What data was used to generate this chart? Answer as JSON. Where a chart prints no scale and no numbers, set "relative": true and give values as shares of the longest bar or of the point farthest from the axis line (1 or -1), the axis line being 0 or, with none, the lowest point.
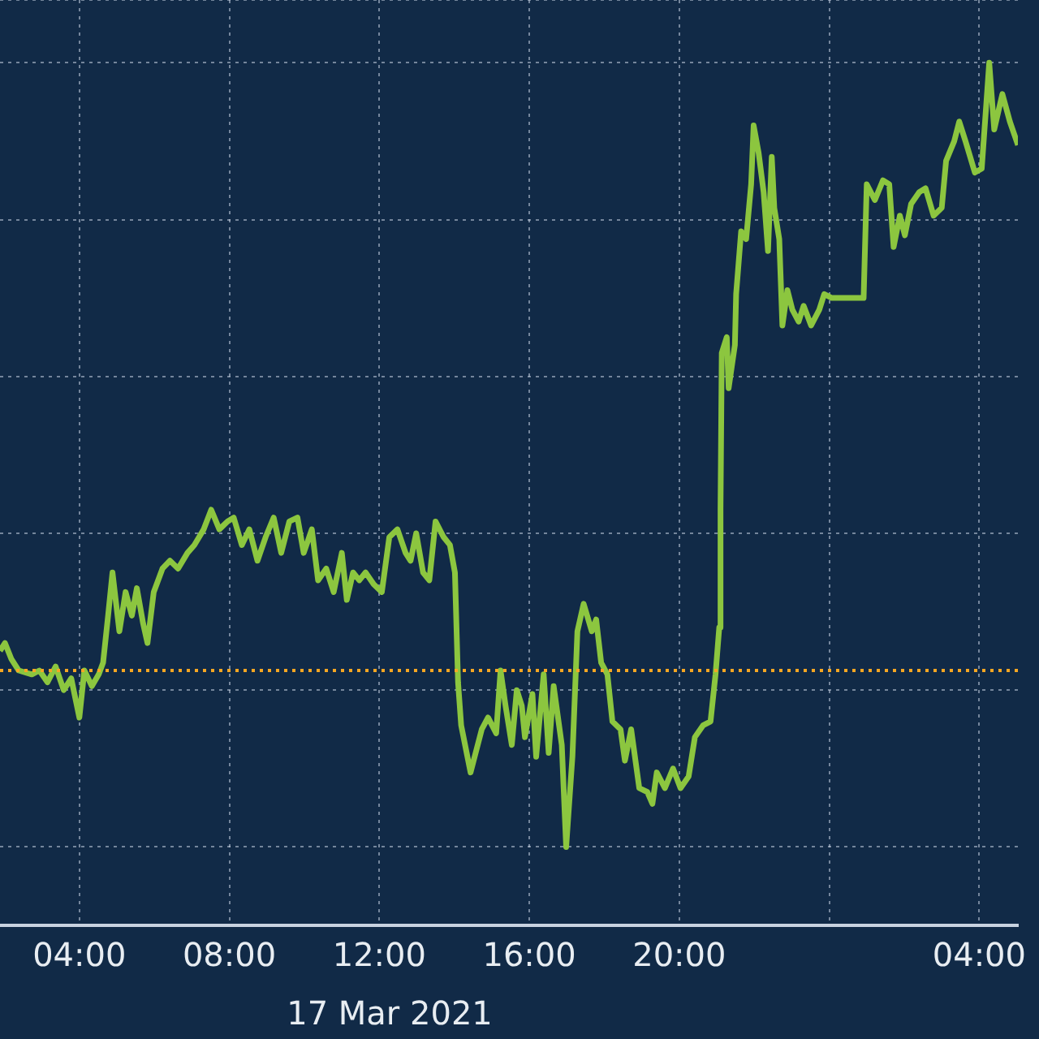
{
  "chart_data": {
    "type": "line",
    "relative": true,
    "grid": true,
    "legend": false,
    "marker": "none",
    "line_style": "solid",
    "xlim": [
      "2021-03-17T01:53",
      "2021-03-18T05:02"
    ],
    "xticks": [
      {
        "value": "2021-03-17T04:00",
        "label": "04:00"
      },
      {
        "value": "2021-03-17T08:00",
        "label": "08:00"
      },
      {
        "value": "2021-03-17T12:00",
        "label": "12:00"
      },
      {
        "value": "2021-03-17T16:00",
        "label": "16:00"
      },
      {
        "value": "2021-03-17T20:00",
        "label": "20:00"
      },
      {
        "value": "2021-03-18T00:00",
        "label": null
      },
      {
        "value": "2021-03-18T04:00",
        "label": "04:00"
      }
    ],
    "annotations": [
      "17 Mar 2021"
    ],
    "ref_lines": [
      {
        "axis": "y",
        "value": 0.225,
        "label": null,
        "color": "#f5a623",
        "line_style": "dotted"
      }
    ],
    "series": [
      {
        "color": "#8cc63f",
        "x": [
          "2021-03-17T01:53",
          "2021-03-17T02:01",
          "2021-03-17T02:11",
          "2021-03-17T02:23",
          "2021-03-17T02:44",
          "2021-03-17T02:56",
          "2021-03-17T03:09",
          "2021-03-17T03:22",
          "2021-03-17T03:35",
          "2021-03-17T03:47",
          "2021-03-17T04:00",
          "2021-03-17T04:08",
          "2021-03-17T04:20",
          "2021-03-17T04:31",
          "2021-03-17T04:38",
          "2021-03-17T04:46",
          "2021-03-17T04:53",
          "2021-03-17T05:04",
          "2021-03-17T05:14",
          "2021-03-17T05:24",
          "2021-03-17T05:32",
          "2021-03-17T05:42",
          "2021-03-17T05:49",
          "2021-03-17T05:59",
          "2021-03-17T06:13",
          "2021-03-17T06:25",
          "2021-03-17T06:38",
          "2021-03-17T06:53",
          "2021-03-17T07:04",
          "2021-03-17T07:19",
          "2021-03-17T07:31",
          "2021-03-17T07:44",
          "2021-03-17T07:57",
          "2021-03-17T08:07",
          "2021-03-17T08:20",
          "2021-03-17T08:32",
          "2021-03-17T08:45",
          "2021-03-17T08:58",
          "2021-03-17T09:11",
          "2021-03-17T09:23",
          "2021-03-17T09:36",
          "2021-03-17T09:49",
          "2021-03-17T09:59",
          "2021-03-17T10:12",
          "2021-03-17T10:22",
          "2021-03-17T10:35",
          "2021-03-17T10:47",
          "2021-03-17T11:00",
          "2021-03-17T11:08",
          "2021-03-17T11:18",
          "2021-03-17T11:28",
          "2021-03-17T11:38",
          "2021-03-17T11:51",
          "2021-03-17T12:04",
          "2021-03-17T12:16",
          "2021-03-17T12:29",
          "2021-03-17T12:42",
          "2021-03-17T12:50",
          "2021-03-17T12:59",
          "2021-03-17T13:10",
          "2021-03-17T13:20",
          "2021-03-17T13:30",
          "2021-03-17T13:43",
          "2021-03-17T13:53",
          "2021-03-17T14:01",
          "2021-03-17T14:06",
          "2021-03-17T14:11",
          "2021-03-17T14:21",
          "2021-03-17T14:26",
          "2021-03-17T14:44",
          "2021-03-17T14:54",
          "2021-03-17T15:07",
          "2021-03-17T15:14",
          "2021-03-17T15:22",
          "2021-03-17T15:32",
          "2021-03-17T15:40",
          "2021-03-17T15:48",
          "2021-03-17T15:53",
          "2021-03-17T16:05",
          "2021-03-17T16:11",
          "2021-03-17T16:23",
          "2021-03-17T16:31",
          "2021-03-17T16:39",
          "2021-03-17T16:52",
          "2021-03-17T16:59",
          "2021-03-17T17:09",
          "2021-03-17T17:17",
          "2021-03-17T17:27",
          "2021-03-17T17:40",
          "2021-03-17T17:47",
          "2021-03-17T17:55",
          "2021-03-17T18:05",
          "2021-03-17T18:13",
          "2021-03-17T18:26",
          "2021-03-17T18:33",
          "2021-03-17T18:43",
          "2021-03-17T18:56",
          "2021-03-17T19:09",
          "2021-03-17T19:17",
          "2021-03-17T19:24",
          "2021-03-17T19:37",
          "2021-03-17T19:50",
          "2021-03-17T20:02",
          "2021-03-17T20:15",
          "2021-03-17T20:25",
          "2021-03-17T20:38",
          "2021-03-17T20:50",
          "2021-03-17T20:58",
          "2021-03-17T21:04",
          "2021-03-17T21:06",
          "2021-03-17T21:08",
          "2021-03-17T21:16",
          "2021-03-17T21:19",
          "2021-03-17T21:29",
          "2021-03-17T21:31",
          "2021-03-17T21:39",
          "2021-03-17T21:47",
          "2021-03-17T21:55",
          "2021-03-17T21:59",
          "2021-03-17T22:07",
          "2021-03-17T22:15",
          "2021-03-17T22:22",
          "2021-03-17T22:28",
          "2021-03-17T22:32",
          "2021-03-17T22:40",
          "2021-03-17T22:45",
          "2021-03-17T22:53",
          "2021-03-17T23:01",
          "2021-03-17T23:11",
          "2021-03-17T23:19",
          "2021-03-17T23:31",
          "2021-03-17T23:44",
          "2021-03-17T23:52",
          "2021-03-18T00:04",
          "2021-03-18T00:55",
          "2021-03-18T01:00",
          "2021-03-18T01:13",
          "2021-03-18T01:26",
          "2021-03-18T01:36",
          "2021-03-18T01:43",
          "2021-03-18T01:53",
          "2021-03-18T02:01",
          "2021-03-18T02:11",
          "2021-03-18T02:24",
          "2021-03-18T02:34",
          "2021-03-18T02:47",
          "2021-03-18T03:00",
          "2021-03-18T03:07",
          "2021-03-18T03:20",
          "2021-03-18T03:28",
          "2021-03-18T03:38",
          "2021-03-18T03:53",
          "2021-03-18T04:04",
          "2021-03-18T04:16",
          "2021-03-18T04:24",
          "2021-03-18T04:37",
          "2021-03-18T04:49",
          "2021-03-18T05:02"
        ],
        "values": [
          0.25,
          0.26,
          0.24,
          0.225,
          0.22,
          0.225,
          0.21,
          0.23,
          0.2,
          0.215,
          0.165,
          0.225,
          0.205,
          0.22,
          0.235,
          0.295,
          0.35,
          0.275,
          0.325,
          0.295,
          0.33,
          0.285,
          0.26,
          0.325,
          0.355,
          0.365,
          0.355,
          0.375,
          0.385,
          0.405,
          0.43,
          0.405,
          0.415,
          0.42,
          0.385,
          0.405,
          0.365,
          0.395,
          0.42,
          0.375,
          0.415,
          0.42,
          0.375,
          0.405,
          0.34,
          0.355,
          0.325,
          0.375,
          0.315,
          0.35,
          0.34,
          0.35,
          0.335,
          0.325,
          0.395,
          0.405,
          0.375,
          0.365,
          0.4,
          0.35,
          0.34,
          0.415,
          0.395,
          0.385,
          0.35,
          0.21,
          0.155,
          0.115,
          0.095,
          0.15,
          0.165,
          0.145,
          0.225,
          0.18,
          0.13,
          0.2,
          0.18,
          0.14,
          0.195,
          0.115,
          0.22,
          0.12,
          0.205,
          0.13,
          0,
          0.115,
          0.275,
          0.31,
          0.275,
          0.29,
          0.235,
          0.22,
          0.16,
          0.15,
          0.11,
          0.15,
          0.075,
          0.07,
          0.055,
          0.095,
          0.075,
          0.1,
          0.075,
          0.09,
          0.14,
          0.155,
          0.16,
          0.22,
          0.28,
          0.43,
          0.63,
          0.65,
          0.585,
          0.64,
          0.705,
          0.785,
          0.775,
          0.845,
          0.92,
          0.885,
          0.835,
          0.76,
          0.88,
          0.815,
          0.775,
          0.665,
          0.71,
          0.685,
          0.67,
          0.69,
          0.665,
          0.685,
          0.705,
          0.7,
          0.7,
          0.845,
          0.825,
          0.85,
          0.845,
          0.765,
          0.805,
          0.78,
          0.82,
          0.835,
          0.84,
          0.805,
          0.815,
          0.875,
          0.9,
          0.925,
          0.9,
          0.86,
          0.865,
          1,
          0.915,
          0.96,
          0.925,
          0.895
        ]
      }
    ]
  }
}
